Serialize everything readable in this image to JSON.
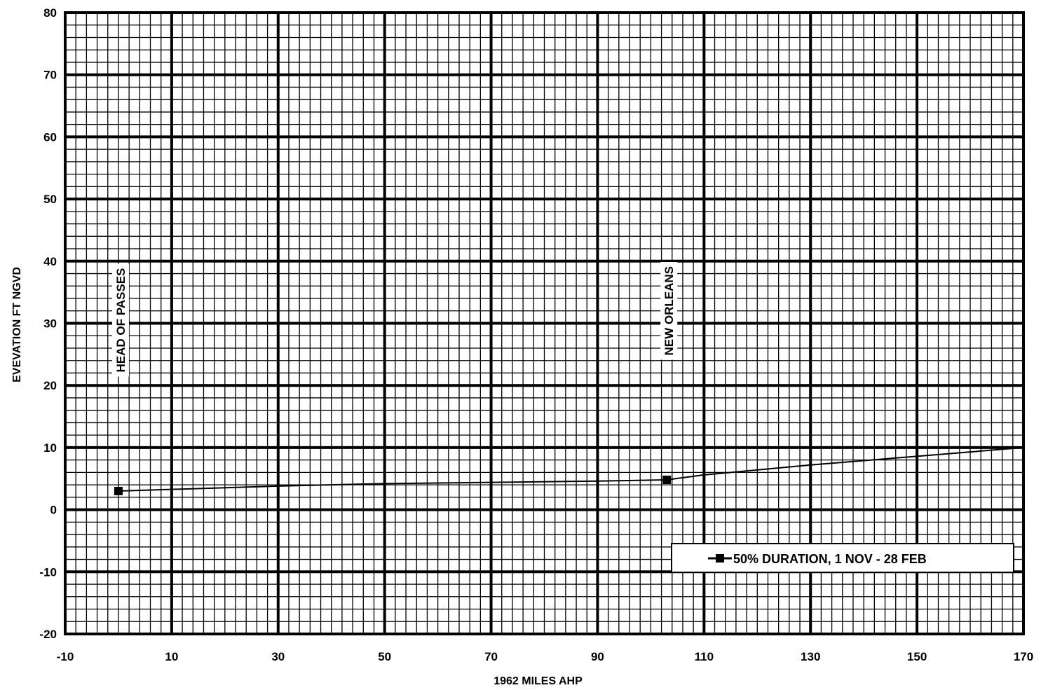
{
  "chart_data": {
    "type": "line",
    "title": "",
    "xlabel": "1962 MILES AHP",
    "ylabel": "EVEVATION FT NGVD",
    "xlim": [
      -10,
      170
    ],
    "ylim": [
      -20,
      80
    ],
    "x_ticks": [
      -10,
      10,
      30,
      50,
      70,
      90,
      110,
      130,
      150,
      170
    ],
    "y_ticks": [
      -20,
      -10,
      0,
      10,
      20,
      30,
      40,
      50,
      60,
      70,
      80
    ],
    "grid": true,
    "legend_position": "bottom-right",
    "series": [
      {
        "name": "50% DURATION, 1 NOV - 28 FEB",
        "color": "#000000",
        "marker": "square",
        "x": [
          0,
          30,
          50,
          70,
          90,
          103,
          110,
          130,
          150,
          170
        ],
        "y": [
          3,
          3.8,
          4.2,
          4.4,
          4.6,
          4.8,
          5.6,
          7.2,
          8.6,
          10.0
        ],
        "marker_indices": [
          0,
          5
        ]
      }
    ],
    "annotations": [
      {
        "text": "HEAD OF PASSES",
        "x": 0,
        "y": 30.5
      },
      {
        "text": "NEW ORLEANS",
        "x": 103,
        "y": 32
      }
    ]
  }
}
